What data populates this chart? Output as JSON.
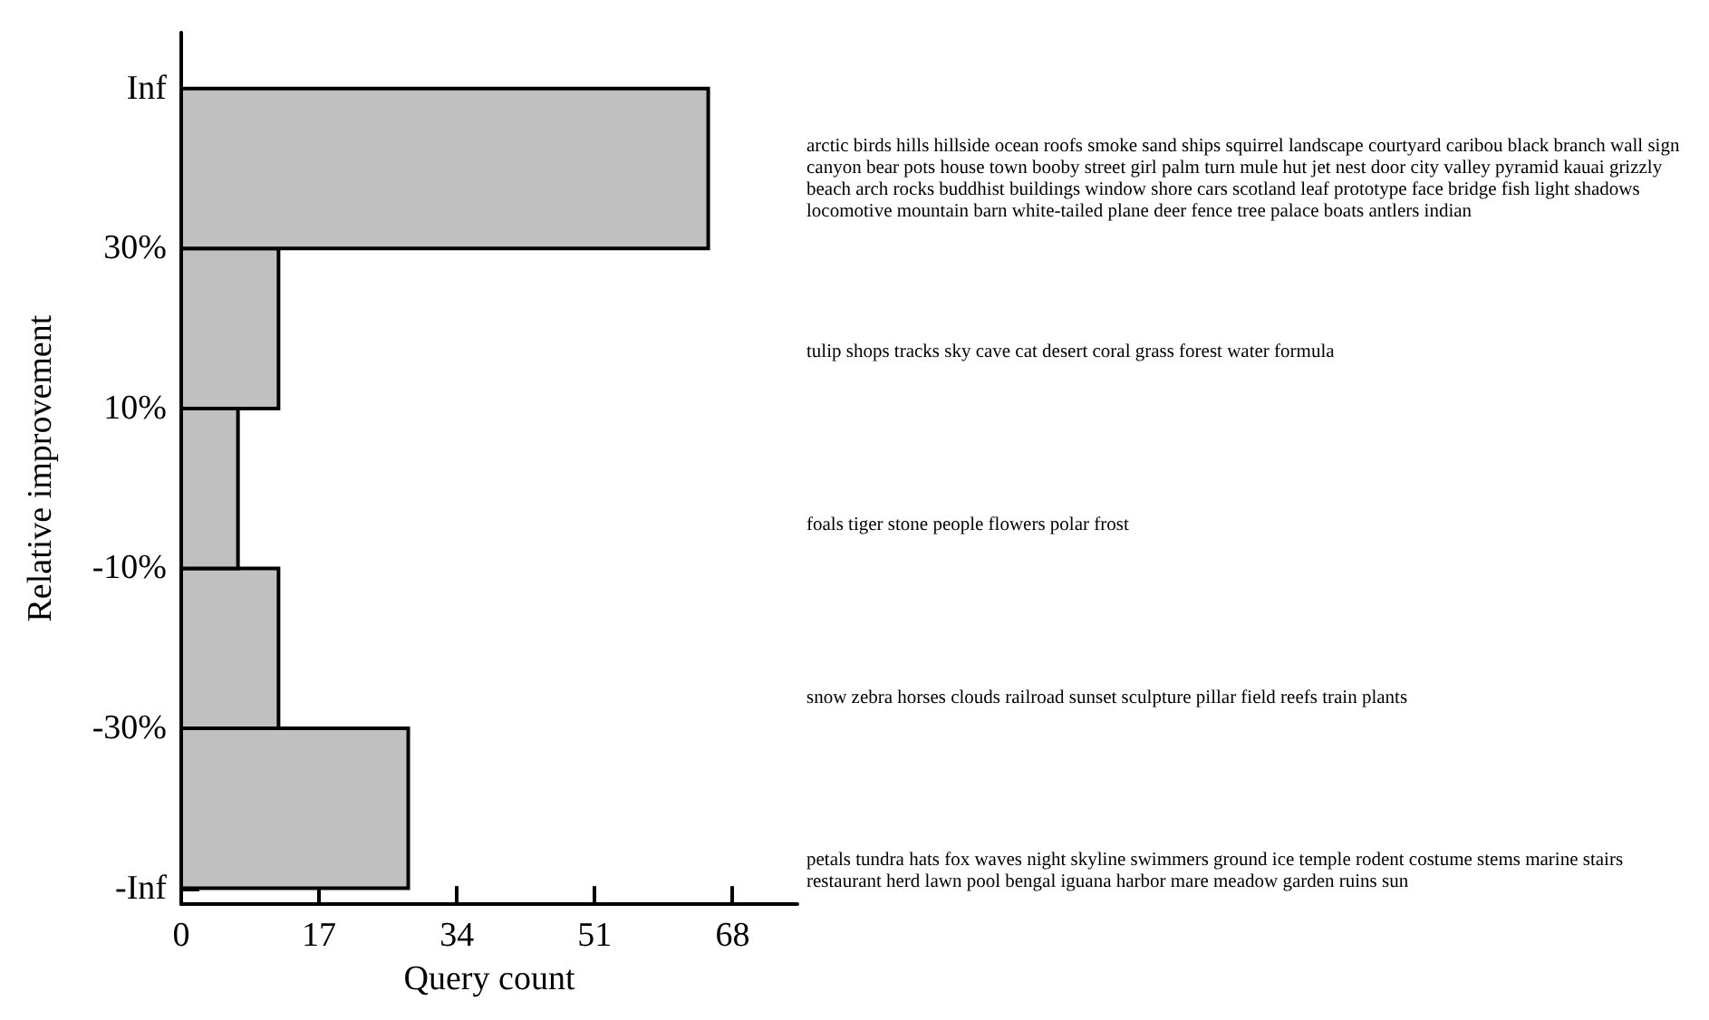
{
  "chart_data": {
    "type": "histogram",
    "orientation": "horizontal",
    "xlabel": "Query count",
    "ylabel": "Relative improvement",
    "bins": [
      -50,
      -30,
      -10,
      10,
      30,
      50
    ],
    "values": [
      28,
      12,
      7,
      12,
      65
    ],
    "color": "#c0c0c0",
    "xlim": [
      0,
      76
    ],
    "xticks": [
      0,
      17,
      34,
      51,
      68
    ],
    "ylim": [
      -52,
      57
    ],
    "yticks": [
      {
        "value": -50,
        "label": "-Inf"
      },
      {
        "value": -30,
        "label": "-30%"
      },
      {
        "value": -10,
        "label": "-10%"
      },
      {
        "value": 10,
        "label": "10%"
      },
      {
        "value": 30,
        "label": "30%"
      },
      {
        "value": 50,
        "label": "Inf"
      }
    ],
    "grid": false,
    "annotations": [
      "petals tundra hats fox waves night skyline swimmers ground ice temple rodent costume stems marine stairs restaurant herd lawn pool bengal iguana harbor mare meadow garden ruins sun",
      "snow zebra horses clouds railroad sunset sculpture pillar field reefs train plants",
      "foals tiger stone people flowers polar frost",
      "tulip shops tracks sky cave cat desert coral grass forest water formula",
      "arctic birds hills hillside ocean roofs smoke sand ships squirrel landscape courtyard caribou black branch wall sign canyon bear pots house town booby street girl palm turn mule hut jet nest door city valley pyramid kauai grizzly beach arch rocks buddhist buildings window shore cars scotland leaf prototype face bridge fish light shadows locomotive mountain barn white-tailed plane deer fence tree palace boats antlers indian"
    ]
  }
}
